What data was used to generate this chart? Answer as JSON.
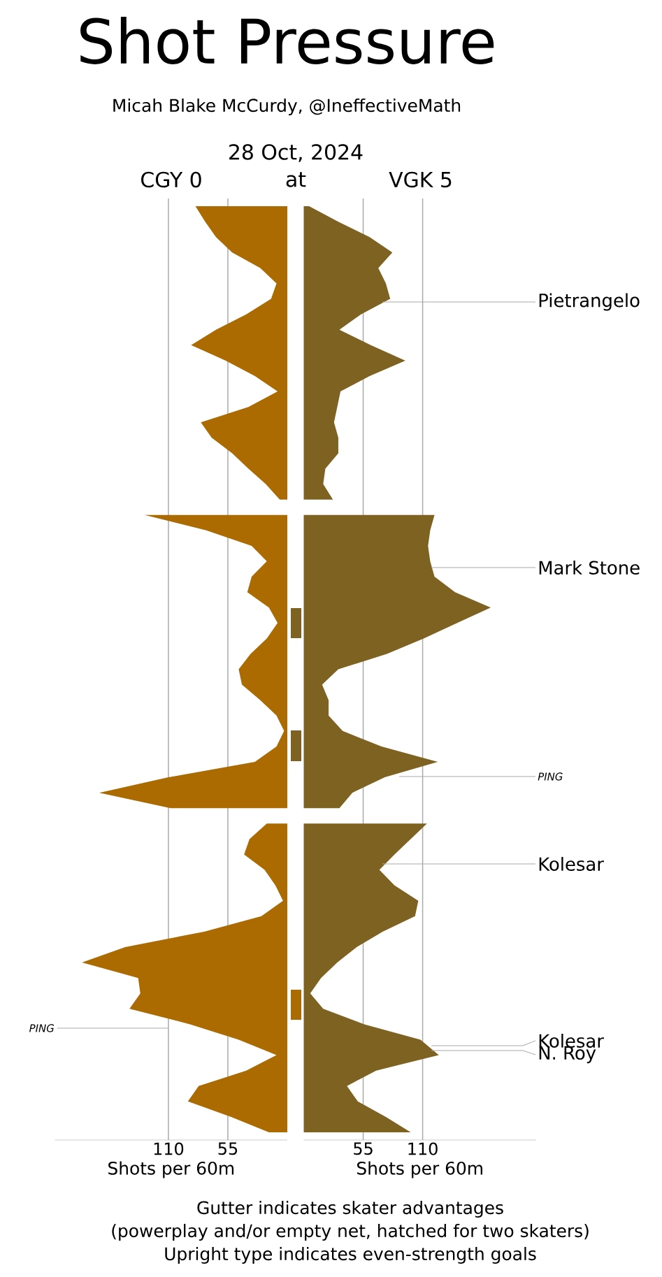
{
  "chart_data": [
    {
      "type": "area",
      "orientation": "horizontal",
      "title": "Shot Pressure",
      "subtitle": "Micah Blake McCurdy, @IneffectiveMath",
      "xlabel": "Shots per 60m",
      "categories": [
        null,
        null,
        null,
        null,
        null,
        null,
        null,
        null,
        null,
        null,
        null,
        null,
        null,
        null,
        null,
        null,
        null,
        null,
        null,
        null,
        null,
        null,
        null,
        null,
        null,
        null,
        null,
        null,
        null,
        null,
        null,
        null,
        null,
        null,
        null,
        null,
        null,
        null,
        null,
        null,
        null,
        null,
        null,
        null,
        null,
        null,
        null,
        null,
        null,
        null,
        null,
        null,
        null,
        null,
        null,
        null,
        null,
        null,
        null,
        null,
        null
      ],
      "xlim": [
        215,
        0
      ],
      "xticks": [
        110,
        55
      ],
      "grid": "x",
      "tick_labels": "x",
      "series": [
        {
          "color": "#ab6b00",
          "values": [
            85,
            76,
            66,
            51,
            25,
            10,
            15,
            38,
            66,
            89,
            57,
            30,
            9,
            36,
            80,
            70,
            51,
            36,
            20,
            7,
            null,
            null,
            null,
            null,
            null,
            null,
            null,
            null,
            null,
            null,
            null,
            null,
            null,
            null,
            null,
            null,
            null,
            null,
            null,
            null,
            null,
            null,
            null,
            null,
            null,
            null,
            null,
            null,
            null,
            null,
            null,
            null,
            null,
            null,
            null,
            null,
            null,
            null,
            null,
            null,
            null
          ]
        },
        {
          "color": "#ab6b00",
          "values": [
            null,
            null,
            null,
            null,
            null,
            null,
            null,
            null,
            null,
            null,
            null,
            null,
            null,
            null,
            null,
            null,
            null,
            null,
            null,
            null,
            132,
            75,
            33,
            19,
            33,
            37,
            17,
            9,
            19,
            34,
            45,
            42,
            25,
            10,
            3,
            10,
            30,
            110,
            174,
            108,
            null,
            null,
            null,
            null,
            null,
            null,
            null,
            null,
            null,
            null,
            null,
            null,
            null,
            null,
            null,
            null,
            null,
            null,
            null,
            null,
            null
          ]
        },
        {
          "color": "#ab6b00",
          "values": [
            null,
            null,
            null,
            null,
            null,
            null,
            null,
            null,
            null,
            null,
            null,
            null,
            null,
            null,
            null,
            null,
            null,
            null,
            null,
            null,
            null,
            null,
            null,
            null,
            null,
            null,
            null,
            null,
            null,
            null,
            null,
            null,
            null,
            null,
            null,
            null,
            null,
            null,
            null,
            null,
            19,
            35,
            40,
            21,
            11,
            4,
            24,
            77,
            150,
            190,
            138,
            136,
            146,
            90,
            45,
            10,
            38,
            82,
            92,
            52,
            17
          ]
        }
      ],
      "annotations": [
        "28 Oct, 2024",
        "CGY 0",
        "at",
        "Gutter indicates skater advantages",
        "(powerplay and/or empty net, hatched for two skaters)",
        "Upright type indicates even-strength goals",
        "*PING*"
      ]
    },
    {
      "type": "area",
      "orientation": "horizontal",
      "xlabel": "Shots per 60m",
      "categories": [
        null,
        null,
        null,
        null,
        null,
        null,
        null,
        null,
        null,
        null,
        null,
        null,
        null,
        null,
        null,
        null,
        null,
        null,
        null,
        null,
        null,
        null,
        null,
        null,
        null,
        null,
        null,
        null,
        null,
        null,
        null,
        null,
        null,
        null,
        null,
        null,
        null,
        null,
        null,
        null,
        null,
        null,
        null,
        null,
        null,
        null,
        null,
        null,
        null,
        null,
        null,
        null,
        null,
        null,
        null,
        null,
        null,
        null,
        null,
        null,
        null
      ],
      "xlim": [
        0,
        215
      ],
      "xticks": [
        55,
        110
      ],
      "grid": "x",
      "tick_labels": "x",
      "series": [
        {
          "color": "#7d6222",
          "values": [
            5,
            32,
            61,
            82,
            69,
            76,
            80,
            53,
            33,
            62,
            94,
            61,
            34,
            31,
            28,
            32,
            32,
            20,
            18,
            27,
            null,
            null,
            null,
            null,
            null,
            null,
            null,
            null,
            null,
            null,
            null,
            null,
            null,
            null,
            null,
            null,
            null,
            null,
            null,
            null,
            null,
            null,
            null,
            null,
            null,
            null,
            null,
            null,
            null,
            null,
            null,
            null,
            null,
            null,
            null,
            null,
            null,
            null,
            null,
            null,
            null
          ]
        },
        {
          "color": "#7d6222",
          "values": [
            null,
            null,
            null,
            null,
            null,
            null,
            null,
            null,
            null,
            null,
            null,
            null,
            null,
            null,
            null,
            null,
            null,
            null,
            null,
            null,
            121,
            117,
            115,
            117,
            121,
            140,
            173,
            142,
            111,
            77,
            32,
            17,
            23,
            23,
            36,
            72,
            124,
            75,
            45,
            33,
            null,
            null,
            null,
            null,
            null,
            null,
            null,
            null,
            null,
            null,
            null,
            null,
            null,
            null,
            null,
            null,
            null,
            null,
            null,
            null,
            null
          ]
        },
        {
          "color": "#7d6222",
          "values": [
            null,
            null,
            null,
            null,
            null,
            null,
            null,
            null,
            null,
            null,
            null,
            null,
            null,
            null,
            null,
            null,
            null,
            null,
            null,
            null,
            null,
            null,
            null,
            null,
            null,
            null,
            null,
            null,
            null,
            null,
            null,
            null,
            null,
            null,
            null,
            null,
            null,
            null,
            null,
            null,
            114,
            99,
            84,
            70,
            84,
            106,
            103,
            73,
            49,
            31,
            16,
            6,
            18,
            56,
            108,
            125,
            67,
            40,
            50,
            76,
            99
          ]
        }
      ],
      "annotations": [
        "VGK 5",
        "Pietrangelo",
        "Mark Stone",
        "*PING*",
        "Kolesar",
        "Kolesar",
        "N. Roy"
      ]
    }
  ]
}
